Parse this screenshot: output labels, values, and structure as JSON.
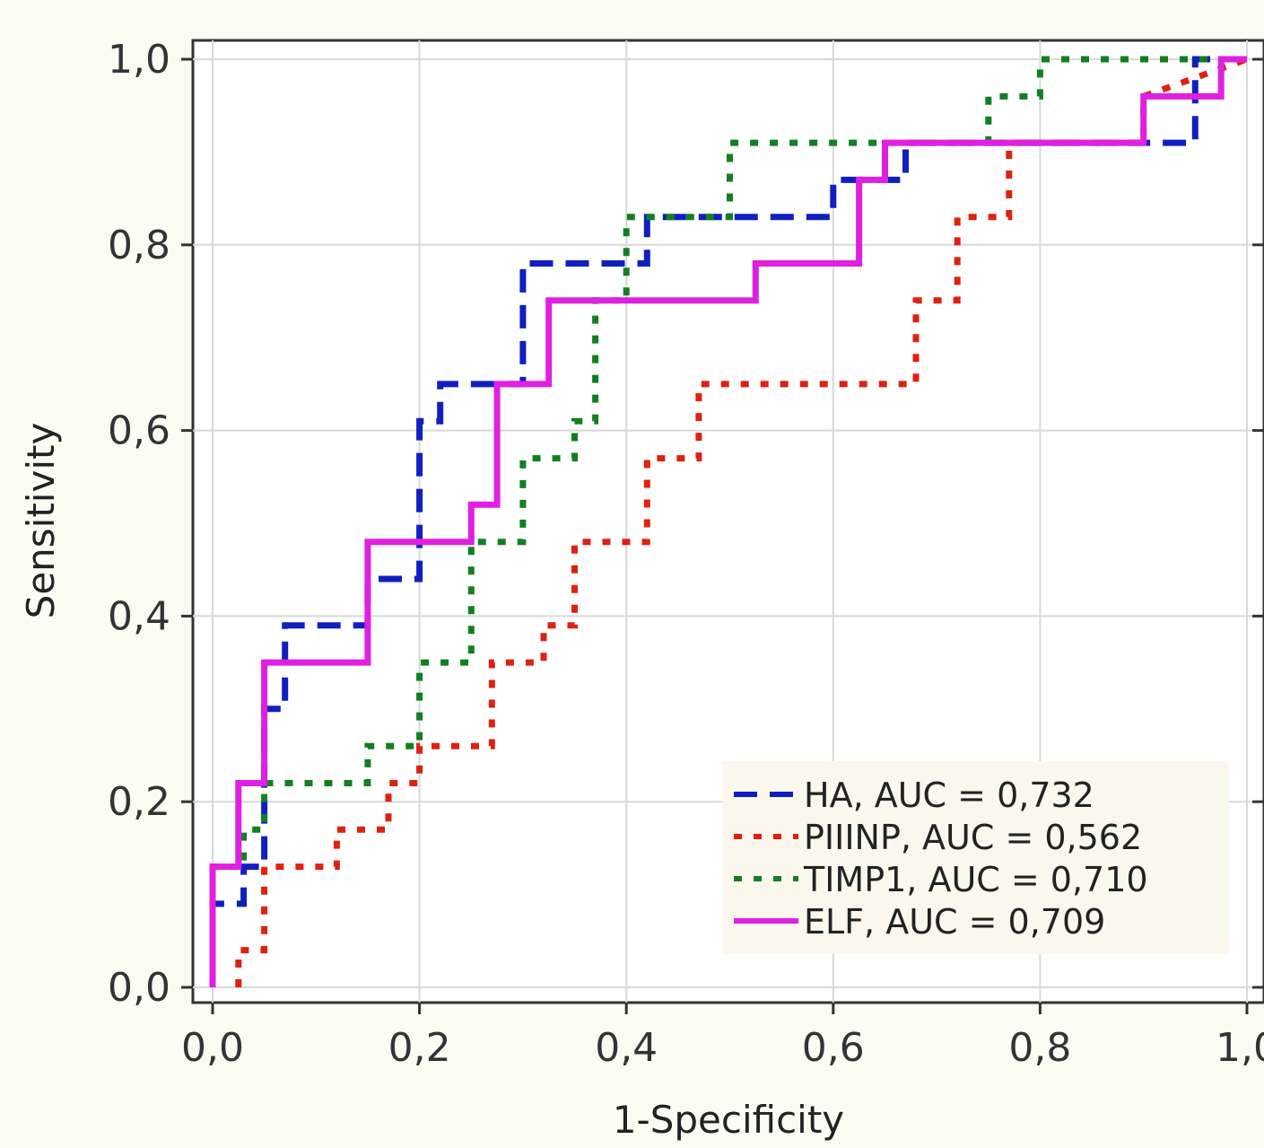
{
  "chart_data": {
    "type": "line",
    "xlabel": "1-Specificity",
    "ylabel": "Sensitivity",
    "xlim": [
      0,
      1
    ],
    "ylim": [
      0,
      1
    ],
    "x_ticks": [
      "0,0",
      "0,2",
      "0,4",
      "0,6",
      "0,8",
      "1,0"
    ],
    "y_ticks": [
      "0,0",
      "0,2",
      "0,4",
      "0,6",
      "0,8",
      "1,0"
    ],
    "grid": true,
    "legend_position": "bottom-right",
    "series": [
      {
        "name": "HA, AUC = 0,732",
        "color": "#1020c0",
        "style": "dashed",
        "x": [
          0.0,
          0.0,
          0.03,
          0.03,
          0.05,
          0.05,
          0.07,
          0.07,
          0.15,
          0.15,
          0.2,
          0.2,
          0.22,
          0.22,
          0.3,
          0.3,
          0.42,
          0.42,
          0.6,
          0.6,
          0.67,
          0.67,
          0.95,
          0.95,
          1.0
        ],
        "y": [
          0.0,
          0.09,
          0.09,
          0.13,
          0.13,
          0.3,
          0.3,
          0.39,
          0.39,
          0.44,
          0.44,
          0.61,
          0.61,
          0.65,
          0.65,
          0.78,
          0.78,
          0.83,
          0.83,
          0.87,
          0.87,
          0.91,
          0.91,
          1.0,
          1.0
        ]
      },
      {
        "name": "PIIINP, AUC = 0,562",
        "color": "#e02010",
        "style": "dotted",
        "x": [
          0.025,
          0.025,
          0.05,
          0.05,
          0.12,
          0.12,
          0.17,
          0.17,
          0.2,
          0.2,
          0.27,
          0.27,
          0.32,
          0.32,
          0.35,
          0.35,
          0.42,
          0.42,
          0.47,
          0.47,
          0.68,
          0.68,
          0.72,
          0.72,
          0.77,
          0.77,
          0.9,
          0.9,
          1.0
        ],
        "y": [
          0.0,
          0.04,
          0.04,
          0.13,
          0.13,
          0.17,
          0.17,
          0.22,
          0.22,
          0.26,
          0.26,
          0.35,
          0.35,
          0.39,
          0.39,
          0.48,
          0.48,
          0.57,
          0.57,
          0.65,
          0.65,
          0.74,
          0.74,
          0.83,
          0.83,
          0.91,
          0.91,
          0.96,
          1.0
        ]
      },
      {
        "name": "TIMP1, AUC = 0,710",
        "color": "#108020",
        "style": "dotted",
        "x": [
          0.0,
          0.0,
          0.03,
          0.03,
          0.05,
          0.05,
          0.15,
          0.15,
          0.2,
          0.2,
          0.25,
          0.25,
          0.3,
          0.3,
          0.35,
          0.35,
          0.37,
          0.37,
          0.4,
          0.4,
          0.5,
          0.5,
          0.75,
          0.75,
          0.8,
          0.8,
          1.0
        ],
        "y": [
          0.0,
          0.13,
          0.13,
          0.17,
          0.17,
          0.22,
          0.22,
          0.26,
          0.26,
          0.35,
          0.35,
          0.48,
          0.48,
          0.57,
          0.57,
          0.61,
          0.61,
          0.74,
          0.74,
          0.83,
          0.83,
          0.91,
          0.91,
          0.96,
          0.96,
          1.0,
          1.0
        ]
      },
      {
        "name": "ELF, AUC = 0,709",
        "color": "#e020e0",
        "style": "solid",
        "x": [
          0.0,
          0.0,
          0.025,
          0.025,
          0.05,
          0.05,
          0.075,
          0.075,
          0.15,
          0.15,
          0.25,
          0.25,
          0.275,
          0.275,
          0.3,
          0.3,
          0.325,
          0.325,
          0.525,
          0.525,
          0.625,
          0.625,
          0.65,
          0.65,
          0.9,
          0.9,
          0.925,
          0.925,
          0.975,
          0.975,
          1.0
        ],
        "y": [
          0.0,
          0.13,
          0.13,
          0.22,
          0.22,
          0.35,
          0.35,
          0.35,
          0.35,
          0.48,
          0.48,
          0.52,
          0.52,
          0.65,
          0.65,
          0.65,
          0.65,
          0.74,
          0.74,
          0.78,
          0.78,
          0.87,
          0.87,
          0.91,
          0.91,
          0.96,
          0.96,
          0.96,
          0.96,
          1.0,
          1.0
        ]
      }
    ]
  }
}
